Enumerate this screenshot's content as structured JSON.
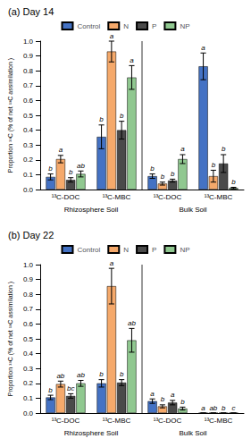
{
  "chart_data": [
    {
      "type": "bar",
      "title": "(a) Day 14",
      "categories": [
        "¹³C-DOC",
        "¹³C-MBC",
        "¹³C-DOC",
        "¹³C-MBC"
      ],
      "sections": [
        "Rhizosphere Soil",
        "Rhizosphere Soil",
        "Bulk Soil",
        "Bulk Soil"
      ],
      "series": [
        {
          "name": "Control",
          "color": "#4472C4",
          "values": [
            0.085,
            0.355,
            0.09,
            0.83
          ],
          "errors": [
            0.02,
            0.08,
            0.015,
            0.09
          ],
          "letters": [
            "b",
            "b",
            "b",
            "a"
          ]
        },
        {
          "name": "N",
          "color": "#F5A96B",
          "values": [
            0.205,
            0.93,
            0.04,
            0.09
          ],
          "errors": [
            0.025,
            0.07,
            0.01,
            0.04
          ],
          "letters": [
            "a",
            "a",
            "b",
            "b"
          ]
        },
        {
          "name": "P",
          "color": "#4a4a4a",
          "values": [
            0.065,
            0.4,
            0.06,
            0.175
          ],
          "errors": [
            0.015,
            0.06,
            0.01,
            0.06
          ],
          "letters": [
            "b",
            "b",
            "b",
            "b"
          ]
        },
        {
          "name": "NP",
          "color": "#90C890",
          "values": [
            0.105,
            0.755,
            0.205,
            0.01
          ],
          "errors": [
            0.02,
            0.08,
            0.03,
            0.005
          ],
          "letters": [
            "ab",
            "a",
            "a",
            "b"
          ]
        }
      ],
      "ylabel": "Proportion ¹³C (% of net ¹³C assimilation )",
      "ylim": [
        0.0,
        1.0
      ],
      "yticks": [
        {
          "value": 0.0,
          "label": "0.0"
        },
        0.1,
        0.2,
        0.3,
        0.4,
        0.5,
        0.6,
        0.7,
        0.8,
        0.9,
        {
          "value": 1.0,
          "label": "1.0"
        }
      ],
      "grid": false,
      "legend": "top"
    },
    {
      "type": "bar",
      "title": "(b) Day 22",
      "categories": [
        "¹³C-DOC",
        "¹³C-MBC",
        "¹³C-DOC",
        "¹³C-MBC"
      ],
      "sections": [
        "Rhizosphere Soil",
        "Rhizosphere Soil",
        "Bulk Soil",
        "Bulk Soil"
      ],
      "series": [
        {
          "name": "Control",
          "color": "#4472C4",
          "values": [
            0.105,
            0.2,
            0.08,
            0.0
          ],
          "errors": [
            0.015,
            0.025,
            0.015,
            0.0
          ],
          "letters": [
            "b",
            "b",
            "a",
            "a"
          ]
        },
        {
          "name": "N",
          "color": "#F5A96B",
          "values": [
            0.195,
            0.855,
            0.045,
            0.0
          ],
          "errors": [
            0.02,
            0.12,
            0.01,
            0.0
          ],
          "letters": [
            "ab",
            "a",
            "b",
            "ab"
          ]
        },
        {
          "name": "P",
          "color": "#4a4a4a",
          "values": [
            0.115,
            0.205,
            0.07,
            0.0
          ],
          "errors": [
            0.015,
            0.02,
            0.015,
            0.0
          ],
          "letters": [
            "bc",
            "b",
            "a",
            "b"
          ]
        },
        {
          "name": "NP",
          "color": "#90C890",
          "values": [
            0.2,
            0.49,
            0.03,
            0.0
          ],
          "errors": [
            0.02,
            0.08,
            0.01,
            0.0
          ],
          "letters": [
            "ab",
            "ab",
            "b",
            "c"
          ]
        }
      ],
      "ylabel": "Proportion ¹³C (% of net ¹³C assimilation )",
      "ylim": [
        0.0,
        1.0
      ],
      "yticks": [
        {
          "value": 0.0,
          "label": "0.0"
        },
        0.1,
        0.2,
        0.3,
        0.4,
        0.5,
        0.6,
        0.7,
        0.8,
        0.9,
        {
          "value": 1.0,
          "label": "1.0"
        }
      ],
      "grid": false,
      "legend": "top"
    }
  ]
}
